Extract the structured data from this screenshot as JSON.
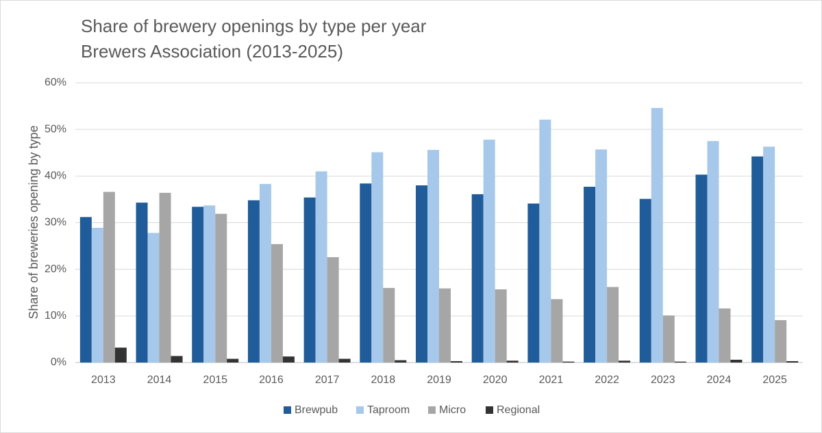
{
  "chart_data": {
    "type": "bar",
    "title": "Share of brewery openings by type per year",
    "subtitle": "Brewers Association (2013-2025)",
    "xlabel": "",
    "ylabel": "Share of breweries opening by type",
    "ylim": [
      0,
      60
    ],
    "yticks": [
      "0%",
      "10%",
      "20%",
      "30%",
      "40%",
      "50%",
      "60%"
    ],
    "grid": true,
    "legend_position": "bottom",
    "categories": [
      "2013",
      "2014",
      "2015",
      "2016",
      "2017",
      "2018",
      "2019",
      "2020",
      "2021",
      "2022",
      "2023",
      "2024",
      "2025"
    ],
    "series": [
      {
        "name": "Brewpub",
        "color": "#1f5c99",
        "values": [
          31.2,
          34.3,
          33.4,
          34.8,
          35.4,
          38.4,
          38.0,
          36.1,
          34.1,
          37.7,
          35.1,
          40.3,
          44.2
        ]
      },
      {
        "name": "Taproom",
        "color": "#a6c8ea",
        "values": [
          28.9,
          27.8,
          33.7,
          38.3,
          41.0,
          45.1,
          45.6,
          47.8,
          52.1,
          45.7,
          54.6,
          47.5,
          46.3
        ]
      },
      {
        "name": "Micro",
        "color": "#a6a6a6",
        "values": [
          36.6,
          36.4,
          31.9,
          25.4,
          22.6,
          16.0,
          15.9,
          15.7,
          13.6,
          16.2,
          10.1,
          11.6,
          9.1
        ]
      },
      {
        "name": "Regional",
        "color": "#333333",
        "values": [
          3.2,
          1.4,
          0.8,
          1.3,
          0.8,
          0.5,
          0.3,
          0.4,
          0.2,
          0.4,
          0.2,
          0.6,
          0.3
        ]
      }
    ]
  }
}
